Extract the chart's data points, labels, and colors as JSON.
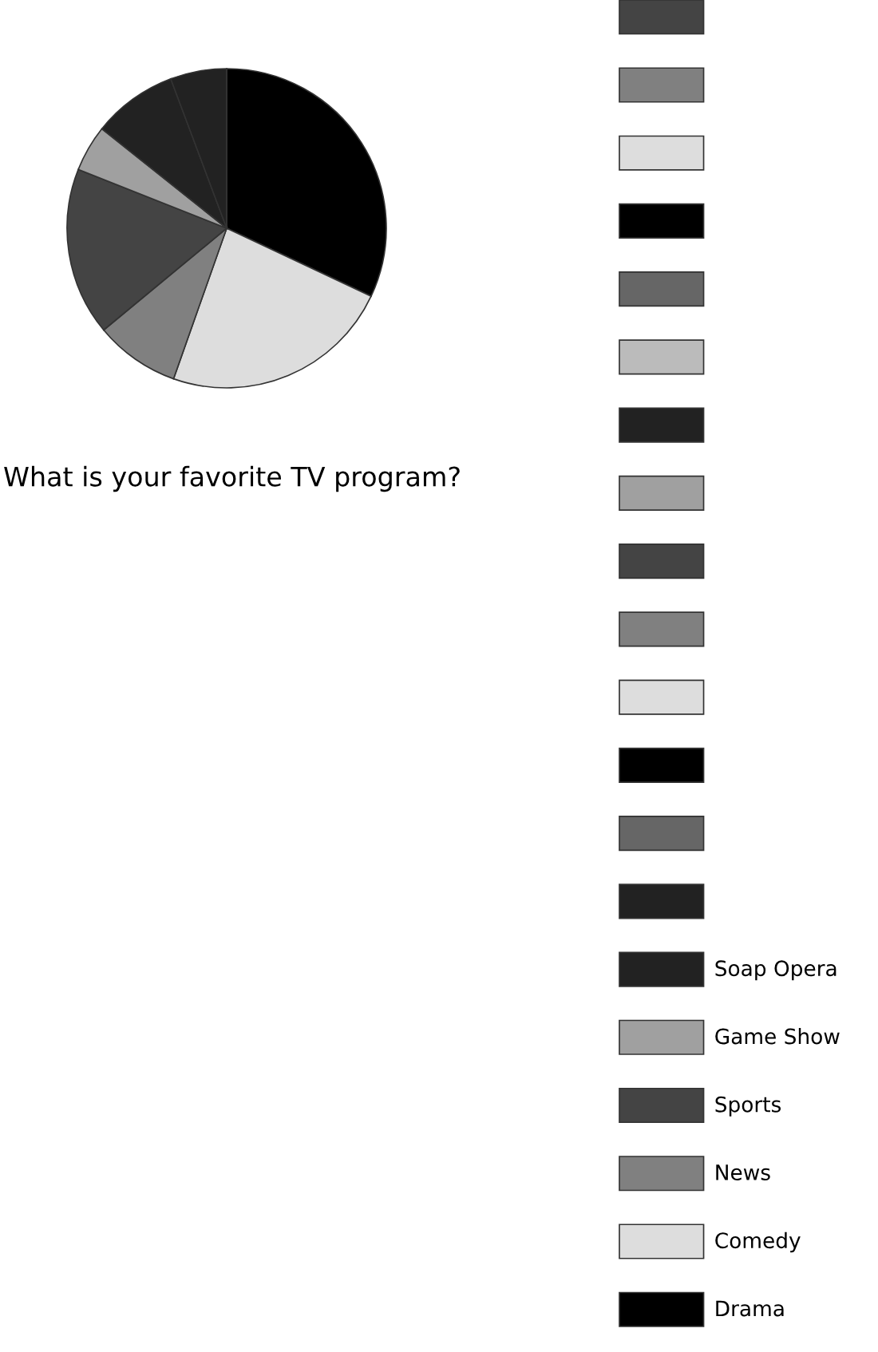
{
  "chart_data": {
    "type": "pie",
    "title": "What is your favorite TV program?",
    "categories": [
      "Drama",
      "Comedy",
      "News",
      "Sports",
      "Game Show",
      "Soap Opera",
      null,
      null,
      null,
      null,
      null,
      null,
      null,
      null,
      null,
      null,
      null,
      null,
      null,
      null
    ],
    "values": [
      32,
      23.4,
      8.6,
      17,
      4.7,
      8.6,
      5.7,
      0,
      0,
      0,
      0,
      0,
      0,
      0,
      0,
      0,
      0,
      0,
      0,
      0
    ],
    "colors": [
      "#000000",
      "#dddddd",
      "#808080",
      "#444444",
      "#a0a0a0",
      "#222222",
      "#222222",
      "#666666",
      "#000000",
      "#dddddd",
      "#808080",
      "#444444",
      "#a0a0a0",
      "#222222",
      "#bbbbbb",
      "#666666",
      "#000000",
      "#dddddd",
      "#808080",
      "#444444"
    ],
    "legend": "right"
  }
}
